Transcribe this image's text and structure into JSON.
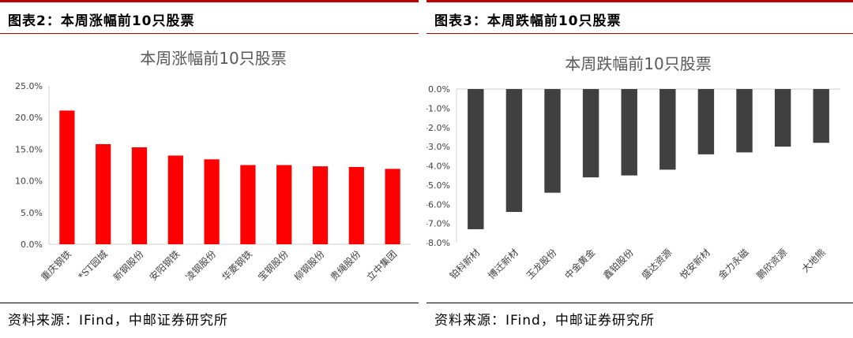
{
  "left_panel": {
    "caption": "图表2：本周涨幅前10只股票",
    "source": "资料来源：IFind，中邮证券研究所"
  },
  "right_panel": {
    "caption": "图表3：本周跌幅前10只股票",
    "source": "资料来源：IFind，中邮证券研究所"
  },
  "colors": {
    "accent": "#c00000",
    "gain_bar": "#ff0000",
    "loss_bar": "#404040",
    "text": "#000000",
    "axis": "#d0d0d0",
    "title": "#595959"
  },
  "chart_data": [
    {
      "type": "bar",
      "title": "本周涨幅前10只股票",
      "categories": [
        "重庆钢铁",
        "*ST园城",
        "新钢股份",
        "安阳钢铁",
        "凌钢股份",
        "华菱钢铁",
        "宝钢股份",
        "柳钢股份",
        "贵绳股份",
        "立中集团"
      ],
      "values": [
        21.1,
        15.8,
        15.3,
        14.0,
        13.4,
        12.5,
        12.5,
        12.3,
        12.2,
        11.9
      ],
      "ylim": [
        0,
        25
      ],
      "yticks": [
        "0.0%",
        "5.0%",
        "10.0%",
        "15.0%",
        "20.0%",
        "25.0%"
      ],
      "grid": false,
      "legend": "none"
    },
    {
      "type": "bar",
      "title": "本周跌幅前10只股票",
      "categories": [
        "铂科新材",
        "博迁新材",
        "玉龙股份",
        "中金黄金",
        "鑫铂股份",
        "盛达资源",
        "悦安新材",
        "金力永磁",
        "鹏欣资源",
        "大地熊"
      ],
      "values": [
        -7.3,
        -6.4,
        -5.4,
        -4.6,
        -4.5,
        -4.2,
        -3.4,
        -3.3,
        -3.0,
        -2.8
      ],
      "ylim": [
        -8,
        0
      ],
      "yticks": [
        "0.0%",
        "-1.0%",
        "-2.0%",
        "-3.0%",
        "-4.0%",
        "-5.0%",
        "-6.0%",
        "-7.0%",
        "-8.0%"
      ],
      "grid": false,
      "legend": "none"
    }
  ]
}
